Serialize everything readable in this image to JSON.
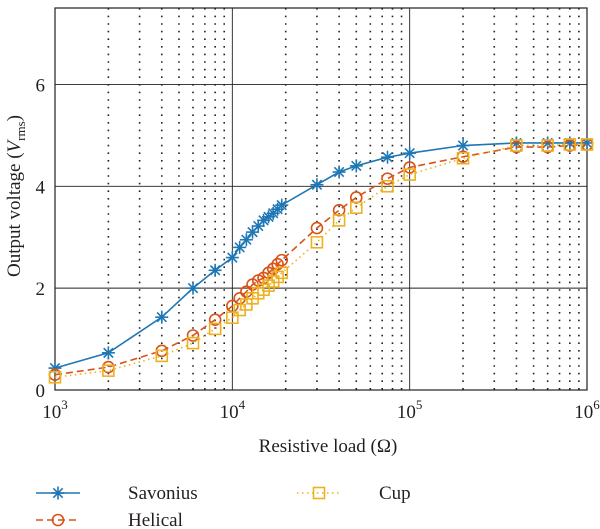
{
  "chart_data": {
    "type": "line",
    "xscale": "log",
    "xlim": [
      1000,
      1000000
    ],
    "ylim": [
      0,
      7.5
    ],
    "xlabel": "Resistive load (Ω)",
    "ylabel": {
      "prefix": "Output voltage (",
      "var": "V",
      "sub": "rms",
      "suffix": ")"
    },
    "x_ticks": [
      {
        "base": "10",
        "exp": "3",
        "value": 1000
      },
      {
        "base": "10",
        "exp": "4",
        "value": 10000
      },
      {
        "base": "10",
        "exp": "5",
        "value": 100000
      },
      {
        "base": "10",
        "exp": "6",
        "value": 1000000
      }
    ],
    "y_ticks": [
      {
        "label": "0",
        "value": 0
      },
      {
        "label": "2",
        "value": 2
      },
      {
        "label": "4",
        "value": 4
      },
      {
        "label": "6",
        "value": 6
      }
    ],
    "grid": true,
    "legend": {
      "position": "bottom"
    },
    "series": [
      {
        "name": "Savonius",
        "color": "#1f77b4",
        "marker": "asterisk",
        "line": "solid",
        "points": [
          [
            1000,
            0.43
          ],
          [
            2000,
            0.73
          ],
          [
            4000,
            1.43
          ],
          [
            6000,
            2.0
          ],
          [
            8000,
            2.35
          ],
          [
            10000,
            2.6
          ],
          [
            11000,
            2.8
          ],
          [
            12000,
            2.95
          ],
          [
            13000,
            3.1
          ],
          [
            14000,
            3.22
          ],
          [
            15000,
            3.33
          ],
          [
            16000,
            3.4
          ],
          [
            17000,
            3.47
          ],
          [
            18000,
            3.55
          ],
          [
            19000,
            3.63
          ],
          [
            30000,
            4.03
          ],
          [
            40000,
            4.28
          ],
          [
            50000,
            4.4
          ],
          [
            75000,
            4.57
          ],
          [
            100000,
            4.65
          ],
          [
            200000,
            4.8
          ],
          [
            400000,
            4.85
          ],
          [
            600000,
            4.85
          ],
          [
            800000,
            4.85
          ],
          [
            1000000,
            4.85
          ]
        ]
      },
      {
        "name": "Helical",
        "color": "#d95319",
        "marker": "circle",
        "line": "dashed",
        "points": [
          [
            1000,
            0.3
          ],
          [
            2000,
            0.45
          ],
          [
            4000,
            0.77
          ],
          [
            6000,
            1.07
          ],
          [
            8000,
            1.38
          ],
          [
            10000,
            1.65
          ],
          [
            11000,
            1.8
          ],
          [
            12000,
            1.93
          ],
          [
            13000,
            2.07
          ],
          [
            14000,
            2.15
          ],
          [
            15000,
            2.2
          ],
          [
            16000,
            2.3
          ],
          [
            17000,
            2.38
          ],
          [
            18000,
            2.47
          ],
          [
            19000,
            2.55
          ],
          [
            30000,
            3.18
          ],
          [
            40000,
            3.53
          ],
          [
            50000,
            3.78
          ],
          [
            75000,
            4.15
          ],
          [
            100000,
            4.37
          ],
          [
            200000,
            4.58
          ],
          [
            400000,
            4.77
          ],
          [
            600000,
            4.77
          ],
          [
            800000,
            4.8
          ],
          [
            1000000,
            4.82
          ]
        ]
      },
      {
        "name": "Cup",
        "color": "#edb120",
        "marker": "square",
        "line": "dotted",
        "points": [
          [
            1000,
            0.25
          ],
          [
            2000,
            0.38
          ],
          [
            4000,
            0.67
          ],
          [
            6000,
            0.92
          ],
          [
            8000,
            1.2
          ],
          [
            10000,
            1.42
          ],
          [
            11000,
            1.57
          ],
          [
            12000,
            1.68
          ],
          [
            13000,
            1.8
          ],
          [
            14000,
            1.9
          ],
          [
            15000,
            1.97
          ],
          [
            16000,
            2.05
          ],
          [
            17000,
            2.13
          ],
          [
            18000,
            2.22
          ],
          [
            19000,
            2.3
          ],
          [
            30000,
            2.9
          ],
          [
            40000,
            3.33
          ],
          [
            50000,
            3.58
          ],
          [
            75000,
            4.0
          ],
          [
            100000,
            4.23
          ],
          [
            200000,
            4.55
          ],
          [
            400000,
            4.8
          ],
          [
            600000,
            4.8
          ],
          [
            800000,
            4.82
          ],
          [
            1000000,
            4.82
          ]
        ]
      }
    ]
  }
}
